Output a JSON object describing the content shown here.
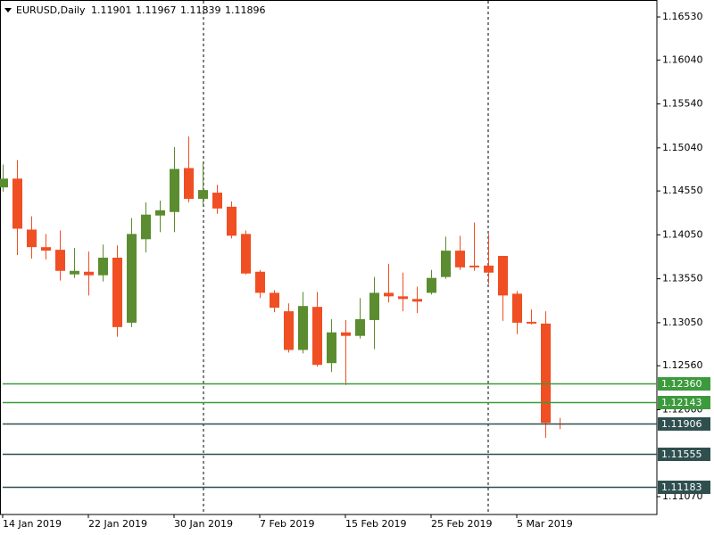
{
  "chart_data": {
    "type": "candlestick",
    "title": "EURUSD,Daily",
    "categories": [
      "14 Jan 2019",
      null,
      null,
      null,
      null,
      null,
      "22 Jan 2019",
      null,
      null,
      null,
      null,
      null,
      "30 Jan 2019",
      null,
      null,
      null,
      null,
      null,
      "7 Feb 2019",
      null,
      null,
      null,
      null,
      null,
      "15 Feb 2019",
      null,
      null,
      null,
      null,
      null,
      "25 Feb 2019",
      null,
      null,
      null,
      null,
      null,
      "5 Mar 2019",
      null,
      null,
      null
    ],
    "open": [
      1.1459,
      1.1469,
      1.1411,
      1.1391,
      1.1388,
      1.136,
      1.1363,
      1.1359,
      1.1379,
      1.1305,
      1.14,
      1.1427,
      1.1431,
      1.1481,
      1.1446,
      1.1453,
      1.1437,
      1.1406,
      1.1363,
      1.1339,
      1.1318,
      1.1274,
      1.1323,
      1.1259,
      1.1294,
      1.129,
      1.1308,
      1.1339,
      1.1335,
      1.1332,
      1.1339,
      1.1357,
      1.1387,
      1.137,
      1.137,
      1.1381,
      1.1338,
      1.1306,
      1.1304,
      1.11901
    ],
    "high": [
      1.1485,
      1.149,
      1.1426,
      1.1406,
      1.141,
      1.139,
      1.1386,
      1.1394,
      1.1393,
      1.1424,
      1.1442,
      1.1444,
      1.1505,
      1.1517,
      1.1488,
      1.1462,
      1.1443,
      1.141,
      1.1365,
      1.1342,
      1.1327,
      1.134,
      1.134,
      1.1309,
      1.1308,
      1.1333,
      1.1357,
      1.1372,
      1.1362,
      1.1346,
      1.1365,
      1.1403,
      1.1404,
      1.1419,
      1.1406,
      1.1381,
      1.1341,
      1.132,
      1.1318,
      1.11967
    ],
    "low": [
      1.1454,
      1.1382,
      1.1378,
      1.1377,
      1.1353,
      1.1356,
      1.1336,
      1.1352,
      1.1289,
      1.13,
      1.1385,
      1.1408,
      1.1408,
      1.1442,
      1.1437,
      1.1429,
      1.1401,
      1.136,
      1.1333,
      1.1317,
      1.1271,
      1.127,
      1.1255,
      1.1249,
      1.1234,
      1.1287,
      1.1275,
      1.1328,
      1.1318,
      1.1316,
      1.1337,
      1.1355,
      1.1365,
      1.1364,
      1.1349,
      1.1307,
      1.1292,
      1.1303,
      1.1174,
      1.11839
    ],
    "close": [
      1.1469,
      1.1412,
      1.1391,
      1.1387,
      1.1364,
      1.1364,
      1.1359,
      1.1379,
      1.13,
      1.1406,
      1.1428,
      1.1433,
      1.148,
      1.1446,
      1.1456,
      1.1435,
      1.1404,
      1.1361,
      1.1339,
      1.1322,
      1.1274,
      1.1324,
      1.1257,
      1.1294,
      1.129,
      1.1309,
      1.1339,
      1.1335,
      1.1332,
      1.1329,
      1.1356,
      1.1387,
      1.1368,
      1.1368,
      1.1362,
      1.1336,
      1.1305,
      1.1304,
      1.1191,
      1.11896
    ],
    "up_color": "#5b8c2f",
    "down_color": "#f04e23",
    "ylim": [
      1.10867,
      1.16723
    ],
    "yticks": [
      {
        "value": 1.1653,
        "label": "1.16530"
      },
      {
        "value": 1.1604,
        "label": "1.16040"
      },
      {
        "value": 1.1554,
        "label": "1.15540"
      },
      {
        "value": 1.1504,
        "label": "1.15040"
      },
      {
        "value": 1.1455,
        "label": "1.14550"
      },
      {
        "value": 1.1405,
        "label": "1.14050"
      },
      {
        "value": 1.1355,
        "label": "1.13550"
      },
      {
        "value": 1.1305,
        "label": "1.13050"
      },
      {
        "value": 1.1256,
        "label": "1.12560"
      },
      {
        "value": 1.1206,
        "label": "1.12060"
      },
      {
        "value": 1.1107,
        "label": "1.11070"
      }
    ],
    "hlines": [
      {
        "value": {
          "value": 1.1236,
          "label": "1.12360"
        },
        "color": "#3c9a3c"
      },
      {
        "value": 1.12143,
        "color": "#3c9a3c"
      },
      {
        "value": 1.11906,
        "color": "#2f4f4f"
      },
      {
        "value": 1.11555,
        "color": "#2f4f4f"
      },
      {
        "value": 1.11183,
        "color": "#2f4f4f"
      }
    ]
  }
}
